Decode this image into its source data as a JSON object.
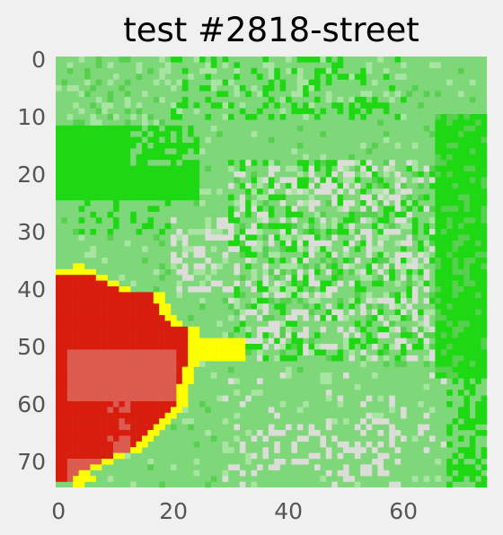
{
  "chart_data": {
    "type": "heatmap",
    "title": "test #2818-street",
    "xlabel": "",
    "ylabel": "",
    "grid": false,
    "xlim": [
      0,
      74
    ],
    "ylim": [
      74,
      0
    ],
    "xticks": [
      0,
      20,
      40,
      60
    ],
    "yticks": [
      0,
      10,
      20,
      30,
      40,
      50,
      60,
      70
    ],
    "grid_size": [
      75,
      75
    ],
    "colors": {
      "background": "#f0f0f0",
      "base_green": "#7ed87a",
      "bright_green": "#1dd812",
      "light_gray": "#dcdcd8",
      "pale_green": "#a8e4a2",
      "mid_green": "#56d04e",
      "red": "#d81c0e",
      "light_red": "#dd5a4e",
      "yellow": "#ffff00",
      "tick_text": "#555555",
      "title_text": "#000000"
    }
  }
}
